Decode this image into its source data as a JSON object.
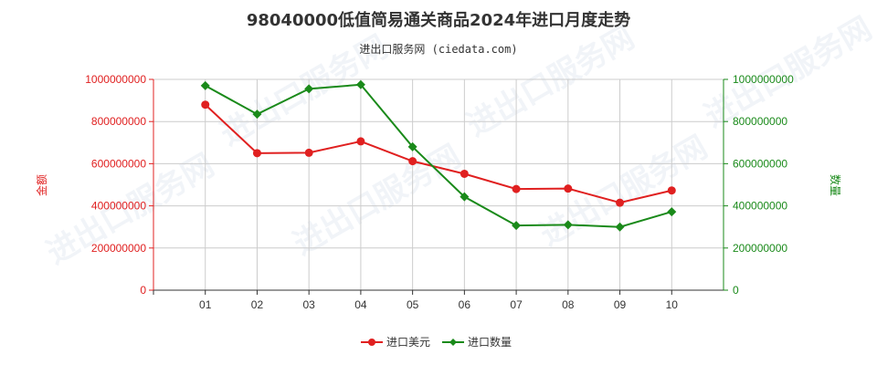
{
  "title": "98040000低值简易通关商品2024年进口月度走势",
  "subtitle": "进出口服务网 (ciedata.com)",
  "watermark": "进出口服务网",
  "colors": {
    "import_value": "#e02020",
    "import_qty": "#1a8a1a",
    "grid": "#cccccc",
    "axis": "#333333"
  },
  "chart_data": {
    "type": "line",
    "categories": [
      "01",
      "02",
      "03",
      "04",
      "05",
      "06",
      "07",
      "08",
      "09",
      "10"
    ],
    "y_left": {
      "label": "金额",
      "ylim": [
        0,
        1000000000
      ],
      "ticks": [
        "0",
        "200000000",
        "400000000",
        "600000000",
        "800000000",
        "1000000000"
      ]
    },
    "y_right": {
      "label": "数量",
      "ylim": [
        0,
        1000000000
      ],
      "ticks": [
        "0",
        "200000000",
        "400000000",
        "600000000",
        "800000000",
        "1000000000"
      ]
    },
    "grid": true,
    "legend_position": "bottom",
    "series": [
      {
        "name": "进口美元",
        "axis": "left",
        "color": "#e02020",
        "marker": "circle",
        "values": [
          880000000,
          650000000,
          652000000,
          706000000,
          612000000,
          552000000,
          480000000,
          482000000,
          415000000,
          473000000
        ]
      },
      {
        "name": "进口数量",
        "axis": "right",
        "color": "#1a8a1a",
        "marker": "diamond",
        "values": [
          970000000,
          835000000,
          955000000,
          975000000,
          680000000,
          443000000,
          307000000,
          310000000,
          300000000,
          372000000
        ]
      }
    ]
  }
}
